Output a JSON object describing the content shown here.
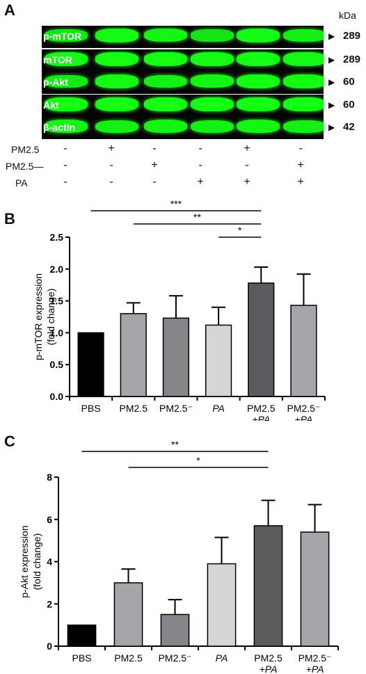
{
  "panels": [
    "A",
    "B",
    "C"
  ],
  "blot": {
    "kda_header": "kDa",
    "rows": [
      {
        "label": "p-mTOR",
        "kda": "289",
        "intensity": [
          0.75,
          0.95,
          0.9,
          0.75,
          0.95,
          0.85
        ]
      },
      {
        "label": "mTOR",
        "kda": "289",
        "intensity": [
          0.95,
          1.0,
          1.0,
          0.95,
          1.0,
          0.95
        ]
      },
      {
        "label": "p-Akt",
        "kda": "60",
        "intensity": [
          0.8,
          0.95,
          0.85,
          0.9,
          1.0,
          0.95
        ]
      },
      {
        "label": "Akt",
        "kda": "60",
        "intensity": [
          1.0,
          1.0,
          1.0,
          1.0,
          1.0,
          1.0
        ]
      },
      {
        "label": "β-actin",
        "kda": "42",
        "intensity": [
          0.9,
          0.85,
          0.9,
          0.85,
          0.9,
          0.85
        ]
      }
    ],
    "treatments": [
      {
        "label": "PM2.5",
        "signs": [
          "-",
          "+",
          "-",
          "-",
          "+",
          "-"
        ]
      },
      {
        "label": "PM2.5—",
        "signs": [
          "-",
          "-",
          "+",
          "-",
          "-",
          "+"
        ]
      },
      {
        "label": "PA",
        "signs": [
          "-",
          "-",
          "-",
          "+",
          "+",
          "+"
        ]
      }
    ]
  },
  "chart_data": [
    {
      "type": "bar",
      "panel": "B",
      "categories": [
        [
          "PBS"
        ],
        [
          "PM2.5"
        ],
        [
          "PM2.5⁻"
        ],
        [
          "PA"
        ],
        [
          "PM2.5",
          "+PA"
        ],
        [
          "PM2.5⁻",
          "+PA"
        ]
      ],
      "italic_parts": [
        "PA",
        "+PA"
      ],
      "values": [
        1.0,
        1.3,
        1.23,
        1.12,
        1.78,
        1.43
      ],
      "errors": [
        0,
        0.17,
        0.35,
        0.28,
        0.25,
        0.49
      ],
      "colors": [
        "#000000",
        "#a5a5aa",
        "#86868a",
        "#d6d6d6",
        "#5b5b5e",
        "#a5a5aa"
      ],
      "ylabel": [
        "p-mTOR expression",
        "(fold change)"
      ],
      "ylim": [
        0,
        2.5
      ],
      "yticks": [
        "0.0",
        "0.5",
        "1.0",
        "1.5",
        "2.0",
        "2.5"
      ],
      "significance": [
        {
          "from": 0,
          "to": 4,
          "label": "***"
        },
        {
          "from": 1,
          "to": 4,
          "label": "**"
        },
        {
          "from": 3,
          "to": 4,
          "label": "*"
        }
      ]
    },
    {
      "type": "bar",
      "panel": "C",
      "categories": [
        [
          "PBS"
        ],
        [
          "PM2.5"
        ],
        [
          "PM2.5⁻"
        ],
        [
          "PA"
        ],
        [
          "PM2.5",
          "+PA"
        ],
        [
          "PM2.5⁻",
          "+PA"
        ]
      ],
      "italic_parts": [
        "PA",
        "+PA"
      ],
      "values": [
        1.0,
        3.0,
        1.5,
        3.9,
        5.7,
        5.4
      ],
      "errors": [
        0,
        0.65,
        0.7,
        1.25,
        1.2,
        1.3
      ],
      "colors": [
        "#000000",
        "#a5a5aa",
        "#86868a",
        "#d6d6d6",
        "#5b5b5e",
        "#a5a5aa"
      ],
      "ylabel": [
        "p-Akt expression",
        "(fold change)"
      ],
      "ylim": [
        0,
        8
      ],
      "yticks": [
        "0",
        "2",
        "4",
        "6",
        "8"
      ],
      "significance": [
        {
          "from": 0,
          "to": 4,
          "label": "**"
        },
        {
          "from": 1,
          "to": 4,
          "label": "*"
        }
      ]
    }
  ]
}
